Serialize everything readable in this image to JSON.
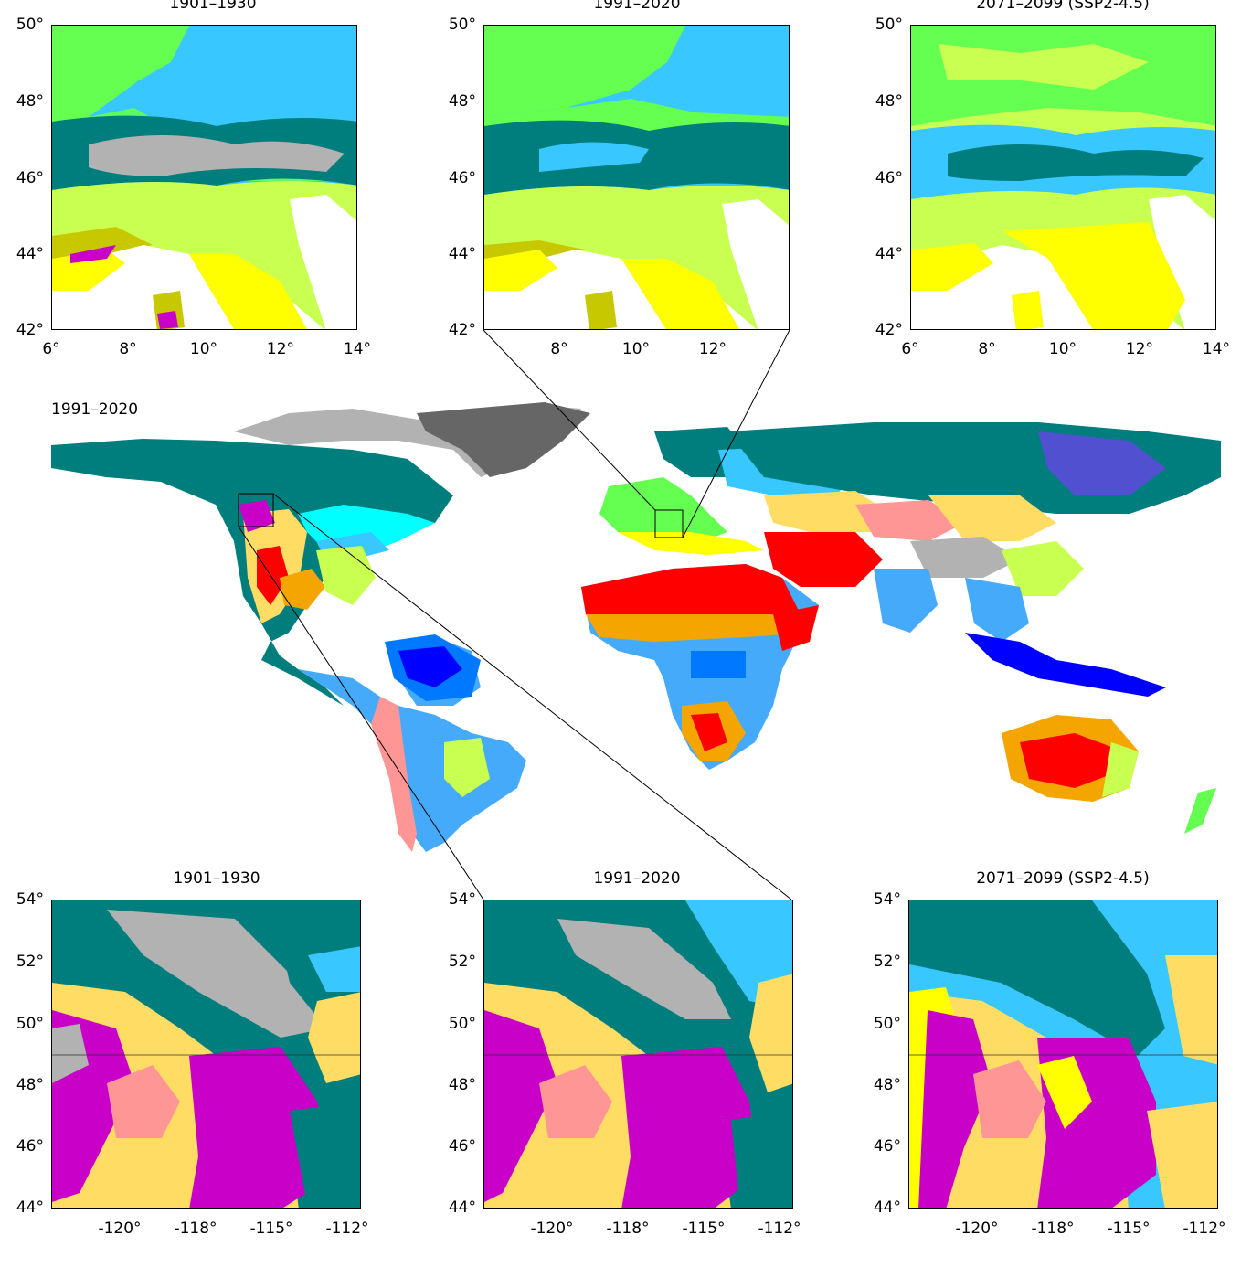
{
  "europe_panels": [
    {
      "title": "1901–1930",
      "y_ticks": [
        "50°",
        "48°",
        "46°",
        "44°",
        "42°"
      ],
      "x_ticks": [
        "6°",
        "8°",
        "10°",
        "12°",
        "14°"
      ]
    },
    {
      "title": "1991–2020",
      "y_ticks": [
        "50°",
        "48°",
        "46°",
        "44°",
        "42°"
      ],
      "x_ticks": [
        "8°",
        "10°",
        "12°"
      ]
    },
    {
      "title": "2071–2099 (SSP2-4.5)",
      "y_ticks": [
        "50°",
        "48°",
        "46°",
        "44°",
        "42°"
      ],
      "x_ticks": [
        "6°",
        "8°",
        "10°",
        "12°",
        "14°"
      ]
    }
  ],
  "world_map": {
    "title": "1991–2020"
  },
  "america_panels": [
    {
      "title": "1901–1930",
      "y_ticks": [
        "54°",
        "52°",
        "50°",
        "48°",
        "46°",
        "44°"
      ],
      "x_ticks": [
        "-120°",
        "-118°",
        "-115°",
        "-112°"
      ]
    },
    {
      "title": "1991–2020",
      "y_ticks": [
        "54°",
        "52°",
        "50°",
        "48°",
        "46°",
        "44°"
      ],
      "x_ticks": [
        "-120°",
        "-118°",
        "-115°",
        "-112°"
      ]
    },
    {
      "title": "2071–2099 (SSP2-4.5)",
      "y_ticks": [
        "54°",
        "52°",
        "50°",
        "48°",
        "46°",
        "44°"
      ],
      "x_ticks": [
        "-120°",
        "-118°",
        "-115°",
        "-112°"
      ]
    }
  ],
  "colors": {
    "Af": "#0000ff",
    "Am": "#0078ff",
    "Aw": "#46aafa",
    "BWh": "#ff0000",
    "BWk": "#ff9696",
    "BSh": "#f5a500",
    "BSk": "#ffdc64",
    "Csa": "#ffff00",
    "Csb": "#c8c800",
    "Cfa": "#c8ff50",
    "Cfb": "#64ff50",
    "Dsa": "#ff00ff",
    "Dsb": "#c800c8",
    "Dfb": "#00ffff",
    "Dfc": "#007d7d",
    "Dfc_light": "#38c8ff",
    "ET": "#b2b2b2",
    "EF": "#666666"
  }
}
